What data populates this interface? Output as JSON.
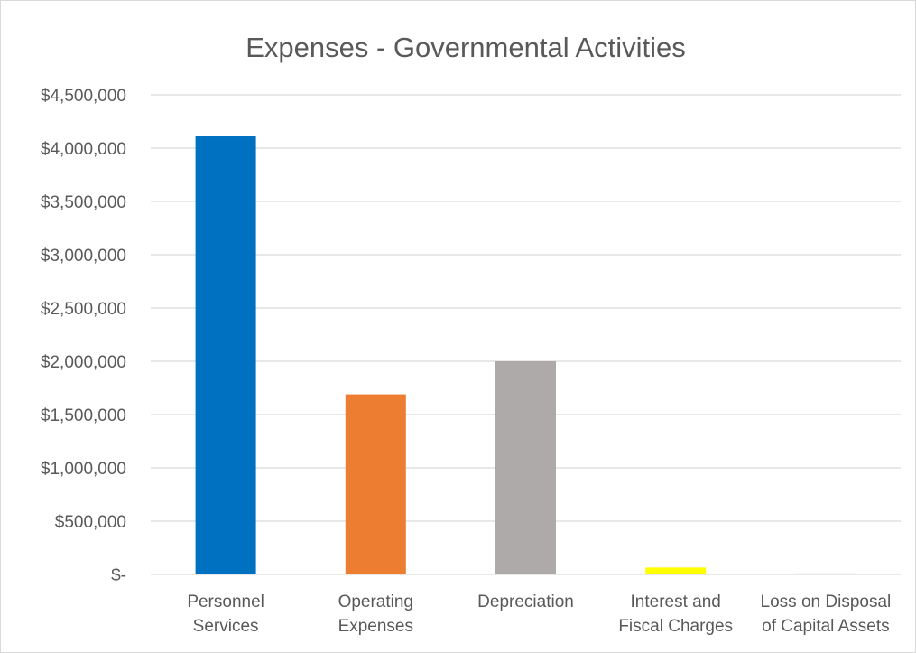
{
  "chart_data": {
    "type": "bar",
    "title": "Expenses - Governmental Activities",
    "xlabel": "",
    "ylabel": "",
    "ylim": [
      0,
      4500000
    ],
    "y_ticks": [
      0,
      500000,
      1000000,
      1500000,
      2000000,
      2500000,
      3000000,
      3500000,
      4000000,
      4500000
    ],
    "y_tick_labels": [
      "$-",
      "$500,000",
      "$1,000,000",
      "$1,500,000",
      "$2,000,000",
      "$2,500,000",
      "$3,000,000",
      "$3,500,000",
      "$4,000,000",
      "$4,500,000"
    ],
    "categories": [
      [
        "Personnel",
        "Services"
      ],
      [
        "Operating",
        "Expenses"
      ],
      [
        "Depreciation"
      ],
      [
        "Interest and",
        "Fiscal Charges"
      ],
      [
        "Loss on Disposal",
        "of Capital Assets"
      ]
    ],
    "values": [
      4110000,
      1690000,
      2000000,
      65000,
      10000
    ],
    "colors": [
      "#0070C0",
      "#ED7D31",
      "#AEAAAA",
      "#FFFF00",
      "#D9D9D9"
    ],
    "grid": true,
    "legend": "none"
  }
}
